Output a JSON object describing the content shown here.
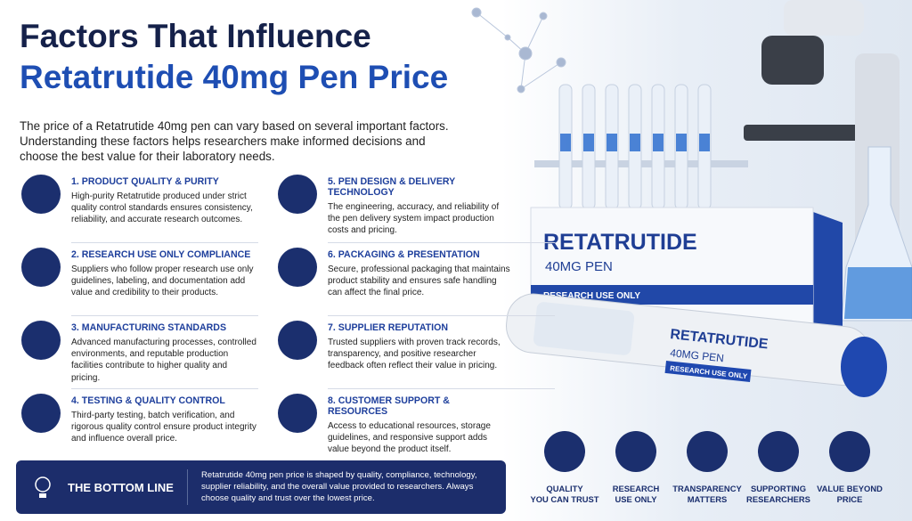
{
  "header": {
    "title_line1": "Factors That Influence",
    "title_line2": "Retatrutide 40mg Pen Price",
    "intro": "The price of a Retatrutide 40mg pen can vary based on several important factors. Understanding these factors helps researchers make informed decisions and choose the best value for their laboratory needs."
  },
  "factors": [
    {
      "title": "1. PRODUCT QUALITY & PURITY",
      "text": "High-purity Retatrutide produced under strict quality control standards ensures consistency, reliability, and accurate research outcomes."
    },
    {
      "title": "2. RESEARCH USE ONLY COMPLIANCE",
      "text": "Suppliers who follow proper research use only guidelines, labeling, and documentation add value and credibility to their products."
    },
    {
      "title": "3. MANUFACTURING STANDARDS",
      "text": "Advanced manufacturing processes, controlled environments, and reputable production facilities contribute to higher quality and pricing."
    },
    {
      "title": "4. TESTING & QUALITY CONTROL",
      "text": "Third-party testing, batch verification, and rigorous quality control ensure product integrity and influence overall price."
    },
    {
      "title": "5. PEN DESIGN & DELIVERY TECHNOLOGY",
      "text": "The engineering, accuracy, and reliability of the pen delivery system impact production costs and pricing."
    },
    {
      "title": "6. PACKAGING & PRESENTATION",
      "text": "Secure, professional packaging that maintains product stability and ensures safe handling can affect the final price."
    },
    {
      "title": "7. SUPPLIER REPUTATION",
      "text": "Trusted suppliers with proven track records, transparency, and positive researcher feedback often reflect their value in pricing."
    },
    {
      "title": "8. CUSTOMER SUPPORT & RESOURCES",
      "text": "Access to educational resources, storage guidelines, and responsive support adds value beyond the product itself."
    }
  ],
  "bottom_line": {
    "label": "THE BOTTOM LINE",
    "text": "Retatrutide 40mg pen price is shaped by quality, compliance, technology, supplier reliability, and the overall value provided to researchers. Always choose quality and trust over the lowest price."
  },
  "product": {
    "box_name": "RETATRUTIDE",
    "box_dose": "40MG PEN",
    "box_label": "RESEARCH USE ONLY",
    "pen_name": "RETATRUTIDE",
    "pen_dose": "40MG PEN",
    "pen_label": "RESEARCH USE ONLY"
  },
  "badges": [
    [
      "QUALITY",
      "YOU CAN TRUST"
    ],
    [
      "RESEARCH",
      "USE ONLY"
    ],
    [
      "TRANSPARENCY",
      "MATTERS"
    ],
    [
      "SUPPORTING",
      "RESEARCHERS"
    ],
    [
      "VALUE BEYOND",
      "PRICE"
    ]
  ]
}
